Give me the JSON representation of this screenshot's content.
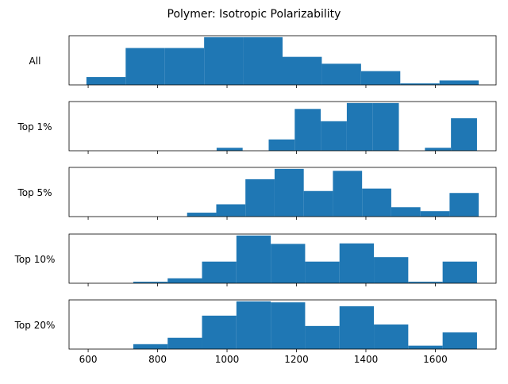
{
  "chart_data": {
    "type": "bar",
    "title": "Polymer: Isotropic Polarizability",
    "xlabel": "",
    "ylabel": "",
    "xlim": [
      545,
      1775
    ],
    "xticks": [
      600,
      800,
      1000,
      1200,
      1400,
      1600
    ],
    "grid": false,
    "bar_color": "#1f77b4",
    "panels": [
      {
        "label": "All",
        "bins": [
          {
            "x0": 595,
            "x1": 708,
            "value": 0.16
          },
          {
            "x0": 708,
            "x1": 821,
            "value": 0.75
          },
          {
            "x0": 821,
            "x1": 934,
            "value": 0.75
          },
          {
            "x0": 934,
            "x1": 1047,
            "value": 0.97
          },
          {
            "x0": 1047,
            "x1": 1160,
            "value": 0.97
          },
          {
            "x0": 1160,
            "x1": 1273,
            "value": 0.57
          },
          {
            "x0": 1273,
            "x1": 1386,
            "value": 0.43
          },
          {
            "x0": 1386,
            "x1": 1499,
            "value": 0.28
          },
          {
            "x0": 1499,
            "x1": 1612,
            "value": 0.03
          },
          {
            "x0": 1612,
            "x1": 1725,
            "value": 0.09
          }
        ]
      },
      {
        "label": "Top 1%",
        "bins": [
          {
            "x0": 970,
            "x1": 1045,
            "value": 0.06
          },
          {
            "x0": 1120,
            "x1": 1195,
            "value": 0.23
          },
          {
            "x0": 1195,
            "x1": 1270,
            "value": 0.85
          },
          {
            "x0": 1270,
            "x1": 1345,
            "value": 0.6
          },
          {
            "x0": 1345,
            "x1": 1420,
            "value": 0.97
          },
          {
            "x0": 1420,
            "x1": 1495,
            "value": 0.97
          },
          {
            "x0": 1570,
            "x1": 1645,
            "value": 0.06
          },
          {
            "x0": 1645,
            "x1": 1720,
            "value": 0.66
          }
        ]
      },
      {
        "label": "Top 5%",
        "bins": [
          {
            "x0": 885,
            "x1": 969,
            "value": 0.08
          },
          {
            "x0": 969,
            "x1": 1053,
            "value": 0.25
          },
          {
            "x0": 1053,
            "x1": 1137,
            "value": 0.76
          },
          {
            "x0": 1137,
            "x1": 1221,
            "value": 0.97
          },
          {
            "x0": 1221,
            "x1": 1305,
            "value": 0.52
          },
          {
            "x0": 1305,
            "x1": 1389,
            "value": 0.93
          },
          {
            "x0": 1389,
            "x1": 1473,
            "value": 0.57
          },
          {
            "x0": 1473,
            "x1": 1557,
            "value": 0.19
          },
          {
            "x0": 1557,
            "x1": 1641,
            "value": 0.11
          },
          {
            "x0": 1641,
            "x1": 1725,
            "value": 0.48
          }
        ]
      },
      {
        "label": "Top 10%",
        "bins": [
          {
            "x0": 730,
            "x1": 829,
            "value": 0.03
          },
          {
            "x0": 829,
            "x1": 928,
            "value": 0.1
          },
          {
            "x0": 928,
            "x1": 1027,
            "value": 0.44
          },
          {
            "x0": 1027,
            "x1": 1126,
            "value": 0.97
          },
          {
            "x0": 1126,
            "x1": 1225,
            "value": 0.8
          },
          {
            "x0": 1225,
            "x1": 1324,
            "value": 0.44
          },
          {
            "x0": 1324,
            "x1": 1423,
            "value": 0.81
          },
          {
            "x0": 1423,
            "x1": 1522,
            "value": 0.53
          },
          {
            "x0": 1522,
            "x1": 1621,
            "value": 0.03
          },
          {
            "x0": 1621,
            "x1": 1720,
            "value": 0.44
          }
        ]
      },
      {
        "label": "Top 20%",
        "bins": [
          {
            "x0": 730,
            "x1": 829,
            "value": 0.1
          },
          {
            "x0": 829,
            "x1": 928,
            "value": 0.23
          },
          {
            "x0": 928,
            "x1": 1027,
            "value": 0.68
          },
          {
            "x0": 1027,
            "x1": 1126,
            "value": 0.97
          },
          {
            "x0": 1126,
            "x1": 1225,
            "value": 0.95
          },
          {
            "x0": 1225,
            "x1": 1324,
            "value": 0.47
          },
          {
            "x0": 1324,
            "x1": 1423,
            "value": 0.87
          },
          {
            "x0": 1423,
            "x1": 1522,
            "value": 0.5
          },
          {
            "x0": 1522,
            "x1": 1621,
            "value": 0.07
          },
          {
            "x0": 1621,
            "x1": 1720,
            "value": 0.34
          }
        ]
      }
    ]
  }
}
